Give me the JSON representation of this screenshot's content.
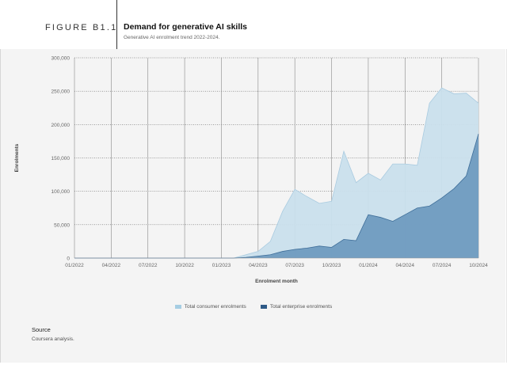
{
  "header": {
    "figure_label": "FIGURE B1.1",
    "title": "Demand for generative AI skills",
    "subtitle": "Generative AI enrolment trend 2022-2024."
  },
  "source": {
    "title": "Source",
    "text": "Coursera analysis."
  },
  "colors": {
    "consumer": "#c9dfec",
    "consumer_line": "#a9cbe0",
    "enterprise": "#6f9bc0",
    "enterprise_line": "#3f6e99",
    "legend_consumer": "#a6cde3",
    "legend_enterprise": "#2e5a87"
  },
  "chart_data": {
    "type": "area",
    "title": "Demand for generative AI skills",
    "subtitle": "Generative AI enrolment trend 2022-2024.",
    "xlabel": "Enrolment month",
    "ylabel": "Enrolments",
    "ylim": [
      0,
      300000
    ],
    "yticks": [
      0,
      50000,
      100000,
      150000,
      200000,
      250000,
      300000
    ],
    "ytick_labels": [
      "0",
      "50,000",
      "100,000",
      "150,000",
      "200,000",
      "250,000",
      "300,000"
    ],
    "x": [
      "01/2022",
      "02/2022",
      "03/2022",
      "04/2022",
      "05/2022",
      "06/2022",
      "07/2022",
      "08/2022",
      "09/2022",
      "10/2022",
      "11/2022",
      "12/2022",
      "01/2023",
      "02/2023",
      "03/2023",
      "04/2023",
      "05/2023",
      "06/2023",
      "07/2023",
      "08/2023",
      "09/2023",
      "10/2023",
      "11/2023",
      "12/2023",
      "01/2024",
      "02/2024",
      "03/2024",
      "04/2024",
      "05/2024",
      "06/2024",
      "07/2024",
      "08/2024",
      "09/2024",
      "10/2024"
    ],
    "xtick_labels": [
      "01/2022",
      "04/2022",
      "07/2022",
      "10/2022",
      "01/2023",
      "04/2023",
      "07/2023",
      "10/2023",
      "01/2024",
      "04/2024",
      "07/2024",
      "10/2024"
    ],
    "grid": true,
    "legend_position": "bottom",
    "series": [
      {
        "name": "Total consumer enrolments",
        "values": [
          0,
          0,
          0,
          0,
          0,
          0,
          0,
          0,
          0,
          0,
          0,
          0,
          0,
          0,
          5000,
          10000,
          25000,
          70000,
          103000,
          92000,
          82000,
          85000,
          160000,
          113000,
          127000,
          117000,
          141000,
          141000,
          139000,
          232000,
          255000,
          246000,
          247000,
          232000
        ]
      },
      {
        "name": "Total enterprise enrolments",
        "values": [
          0,
          0,
          0,
          0,
          0,
          0,
          0,
          0,
          0,
          0,
          0,
          0,
          0,
          0,
          1000,
          3000,
          5000,
          10000,
          13000,
          15000,
          18000,
          16000,
          28000,
          26000,
          65000,
          61000,
          55000,
          65000,
          75000,
          78000,
          90000,
          104000,
          123000,
          186000
        ]
      }
    ]
  }
}
